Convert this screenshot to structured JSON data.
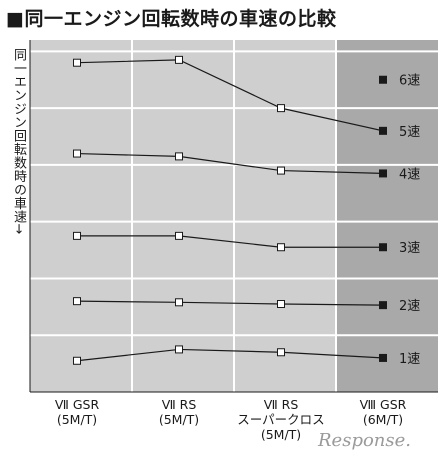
{
  "title": "■同一エンジン回転数時の車速の比較",
  "watermark": "Response.",
  "colors": {
    "panel": "#cfcfcf",
    "panel_highlight": "#a9a9a9",
    "grid": "#ffffff",
    "line": "#1a1a1a"
  },
  "chart_data": {
    "type": "line",
    "title": "同一エンジン回転数時の車速の比較",
    "ylabel": "同一エンジン回転数時の車速→",
    "xlabel": "",
    "categories": [
      [
        "Ⅶ GSR",
        "(5M/T)"
      ],
      [
        "Ⅶ RS",
        "(5M/T)"
      ],
      [
        "Ⅶ RS",
        "スーパークロス",
        "(5M/T)"
      ],
      [
        "Ⅷ GSR",
        "(6M/T)"
      ]
    ],
    "highlighted_category": 3,
    "ylim": [
      0,
      6.2
    ],
    "grid": true,
    "series": [
      {
        "name": "1速",
        "values": [
          0.55,
          0.75,
          0.7,
          0.6
        ]
      },
      {
        "name": "2速",
        "values": [
          1.6,
          1.58,
          1.55,
          1.53
        ]
      },
      {
        "name": "3速",
        "values": [
          2.75,
          2.75,
          2.55,
          2.55
        ]
      },
      {
        "name": "4速",
        "values": [
          4.2,
          4.15,
          3.9,
          3.85
        ]
      },
      {
        "name": "5速",
        "values": [
          5.8,
          5.85,
          5.0,
          4.6
        ]
      },
      {
        "name": "6速",
        "values": [
          null,
          null,
          null,
          5.5
        ]
      }
    ]
  }
}
